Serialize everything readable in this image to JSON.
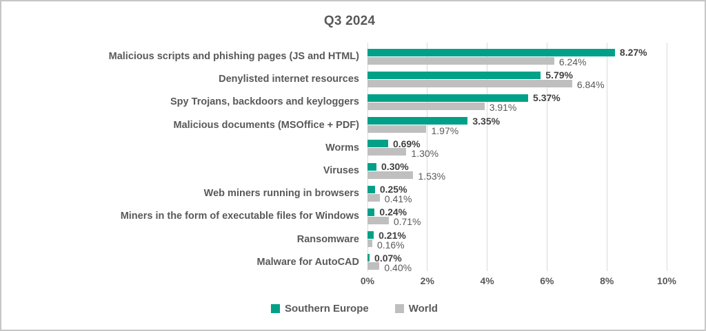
{
  "chart_data": {
    "type": "bar",
    "orientation": "horizontal",
    "title": "Q3 2024",
    "categories": [
      "Malicious scripts and phishing pages (JS and HTML)",
      "Denylisted internet resources",
      "Spy Trojans, backdoors and keyloggers",
      "Malicious documents (MSOffice + PDF)",
      "Worms",
      "Viruses",
      "Web miners running in browsers",
      "Miners in the form of executable files for Windows",
      "Ransomware",
      "Malware for AutoCAD"
    ],
    "series": [
      {
        "name": "Southern Europe",
        "color": "#00A188",
        "values": [
          8.27,
          5.79,
          5.37,
          3.35,
          0.69,
          0.3,
          0.25,
          0.24,
          0.21,
          0.07
        ]
      },
      {
        "name": "World",
        "color": "#BFBFBF",
        "values": [
          6.24,
          6.84,
          3.91,
          1.97,
          1.3,
          1.53,
          0.41,
          0.71,
          0.16,
          0.4
        ]
      }
    ],
    "value_label_suffix": "%",
    "xlim": [
      0,
      10
    ],
    "x_ticks": [
      0,
      2,
      4,
      6,
      8,
      10
    ],
    "x_tick_suffix": "%",
    "grid": "vertical",
    "legend_position": "bottom"
  },
  "colors": {
    "series_primary": "#00A188",
    "series_secondary": "#BFBFBF",
    "value_label_primary": "#404040",
    "text_gray": "#595959",
    "gridline": "#D9D9D9",
    "border": "#C6C6C6"
  }
}
